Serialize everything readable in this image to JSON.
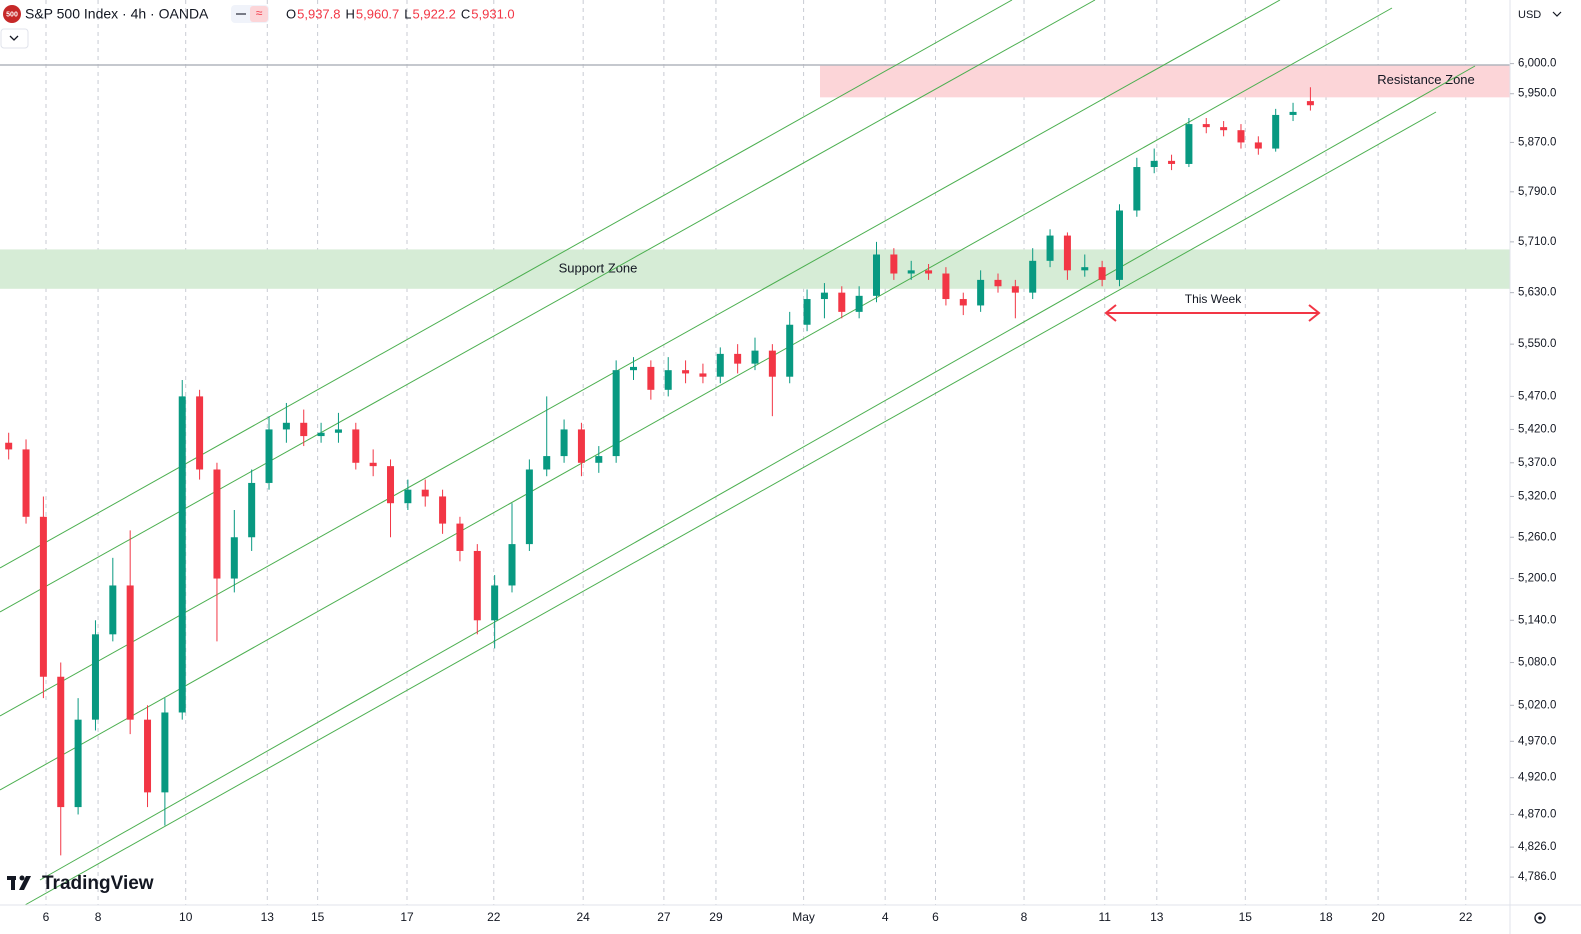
{
  "chart_data": {
    "type": "candlestick",
    "title": "S&P 500 Index · 4h · OANDA",
    "badge": "500",
    "ohlc_legend": [
      {
        "label": "O",
        "value": "5,937.8"
      },
      {
        "label": "H",
        "value": "5,960.7"
      },
      {
        "label": "L",
        "value": "5,922.2"
      },
      {
        "label": "C",
        "value": "5,931.0"
      }
    ],
    "currency": "USD",
    "logo": "TradingView",
    "log_scale": true,
    "up_color": "#089981",
    "down_color": "#f23645",
    "xlim": [
      0,
      174
    ],
    "ylim": [
      4749,
      6107
    ],
    "xticks": [
      {
        "value": 5.3,
        "label": "6"
      },
      {
        "value": 11.3,
        "label": "8"
      },
      {
        "value": 21.4,
        "label": "10"
      },
      {
        "value": 30.8,
        "label": "13"
      },
      {
        "value": 36.6,
        "label": "15"
      },
      {
        "value": 46.9,
        "label": "17"
      },
      {
        "value": 56.9,
        "label": "22"
      },
      {
        "value": 67.2,
        "label": "24"
      },
      {
        "value": 76.5,
        "label": "27"
      },
      {
        "value": 82.5,
        "label": "29"
      },
      {
        "value": 92.6,
        "label": "May"
      },
      {
        "value": 102,
        "label": "4"
      },
      {
        "value": 107.8,
        "label": "6"
      },
      {
        "value": 118,
        "label": "8"
      },
      {
        "value": 127.3,
        "label": "11"
      },
      {
        "value": 133.3,
        "label": "13"
      },
      {
        "value": 143.5,
        "label": "15"
      },
      {
        "value": 152.8,
        "label": "18"
      },
      {
        "value": 158.8,
        "label": "20"
      },
      {
        "value": 168.9,
        "label": "22"
      }
    ],
    "yticks": [
      {
        "value": 6000,
        "label": "6,000.0"
      },
      {
        "value": 5950,
        "label": "5,950.0"
      },
      {
        "value": 5870,
        "label": "5,870.0"
      },
      {
        "value": 5790,
        "label": "5,790.0"
      },
      {
        "value": 5710,
        "label": "5,710.0"
      },
      {
        "value": 5630,
        "label": "5,630.0"
      },
      {
        "value": 5550,
        "label": "5,550.0"
      },
      {
        "value": 5470,
        "label": "5,470.0"
      },
      {
        "value": 5420,
        "label": "5,420.0"
      },
      {
        "value": 5370,
        "label": "5,370.0"
      },
      {
        "value": 5320,
        "label": "5,320.0"
      },
      {
        "value": 5260,
        "label": "5,260.0"
      },
      {
        "value": 5200,
        "label": "5,200.0"
      },
      {
        "value": 5140,
        "label": "5,140.0"
      },
      {
        "value": 5080,
        "label": "5,080.0"
      },
      {
        "value": 5020,
        "label": "5,020.0"
      },
      {
        "value": 4970,
        "label": "4,970.0"
      },
      {
        "value": 4920,
        "label": "4,920.0"
      },
      {
        "value": 4870,
        "label": "4,870.0"
      },
      {
        "value": 4826,
        "label": "4,826.0"
      },
      {
        "value": 4786,
        "label": "4,786.0"
      }
    ],
    "zones": [
      {
        "label": "Support Zone",
        "low": 5636,
        "high": 5698,
        "color": "#d6ecd6"
      },
      {
        "label": "Resistance Zone",
        "low": 5944,
        "high": 5997,
        "color": "#fcd5d8"
      }
    ],
    "annotation": "This Week",
    "x": [
      1,
      3,
      5,
      7,
      9,
      11,
      13,
      15,
      17,
      19,
      21,
      23,
      25,
      27,
      29,
      31,
      33,
      35,
      37,
      39,
      41,
      43,
      45,
      47,
      49,
      51,
      53,
      55,
      57,
      59,
      61,
      63,
      65,
      67,
      69,
      71,
      73,
      75,
      77,
      79,
      81,
      83,
      85,
      87,
      89,
      91,
      93,
      95,
      97,
      99,
      101,
      103,
      105,
      107,
      109,
      111,
      113,
      115,
      117,
      119,
      121,
      123,
      125,
      127,
      129,
      131,
      133,
      135,
      137,
      139,
      141,
      143,
      145,
      147,
      149,
      151
    ],
    "open": [
      5400,
      5390,
      5290,
      5060,
      4880,
      5000,
      5120,
      5190,
      5000,
      4900,
      5010,
      5470,
      5360,
      5200,
      5260,
      5340,
      5420,
      5430,
      5410,
      5415,
      5420,
      5370,
      5365,
      5310,
      5330,
      5320,
      5280,
      5240,
      5140,
      5190,
      5250,
      5360,
      5380,
      5420,
      5370,
      5380,
      5510,
      5515,
      5480,
      5510,
      5505,
      5500,
      5535,
      5520,
      5540,
      5500,
      5580,
      5620,
      5630,
      5600,
      5625,
      5690,
      5660,
      5665,
      5660,
      5620,
      5610,
      5650,
      5640,
      5630,
      5680,
      5720,
      5665,
      5670,
      5650,
      5760,
      5830,
      5840,
      5835,
      5900,
      5895,
      5890,
      5870,
      5860,
      5915,
      5937.8
    ],
    "high": [
      5415,
      5405,
      5320,
      5080,
      5030,
      5140,
      5230,
      5270,
      5020,
      5030,
      5495,
      5480,
      5370,
      5300,
      5360,
      5440,
      5460,
      5450,
      5430,
      5445,
      5430,
      5390,
      5375,
      5345,
      5345,
      5330,
      5290,
      5250,
      5205,
      5310,
      5375,
      5470,
      5435,
      5430,
      5395,
      5525,
      5530,
      5525,
      5530,
      5525,
      5520,
      5545,
      5550,
      5560,
      5550,
      5600,
      5635,
      5645,
      5640,
      5640,
      5710,
      5700,
      5680,
      5675,
      5670,
      5630,
      5665,
      5660,
      5650,
      5700,
      5730,
      5725,
      5690,
      5680,
      5770,
      5845,
      5860,
      5850,
      5910,
      5910,
      5905,
      5900,
      5880,
      5925,
      5935,
      5960.7
    ],
    "low": [
      5375,
      5280,
      5030,
      4815,
      4870,
      4985,
      5110,
      4980,
      4880,
      4855,
      5000,
      5345,
      5110,
      5180,
      5240,
      5330,
      5400,
      5395,
      5400,
      5400,
      5360,
      5350,
      5260,
      5300,
      5305,
      5265,
      5225,
      5120,
      5100,
      5180,
      5240,
      5350,
      5370,
      5350,
      5355,
      5370,
      5495,
      5465,
      5470,
      5490,
      5490,
      5490,
      5505,
      5510,
      5440,
      5490,
      5570,
      5590,
      5590,
      5590,
      5615,
      5650,
      5650,
      5650,
      5610,
      5595,
      5600,
      5630,
      5590,
      5620,
      5670,
      5650,
      5655,
      5640,
      5640,
      5750,
      5820,
      5825,
      5830,
      5885,
      5880,
      5860,
      5850,
      5855,
      5905,
      5922.2
    ],
    "close": [
      5390,
      5290,
      5060,
      4880,
      5000,
      5120,
      5190,
      5000,
      4900,
      5010,
      5470,
      5360,
      5200,
      5260,
      5340,
      5420,
      5430,
      5410,
      5415,
      5420,
      5370,
      5365,
      5310,
      5330,
      5320,
      5280,
      5240,
      5140,
      5190,
      5250,
      5360,
      5380,
      5420,
      5370,
      5380,
      5510,
      5515,
      5480,
      5510,
      5505,
      5500,
      5535,
      5520,
      5540,
      5500,
      5580,
      5620,
      5630,
      5600,
      5625,
      5690,
      5660,
      5665,
      5660,
      5620,
      5610,
      5650,
      5640,
      5630,
      5680,
      5720,
      5665,
      5670,
      5650,
      5760,
      5830,
      5840,
      5835,
      5900,
      5895,
      5890,
      5870,
      5860,
      5915,
      5920,
      5931
    ]
  }
}
